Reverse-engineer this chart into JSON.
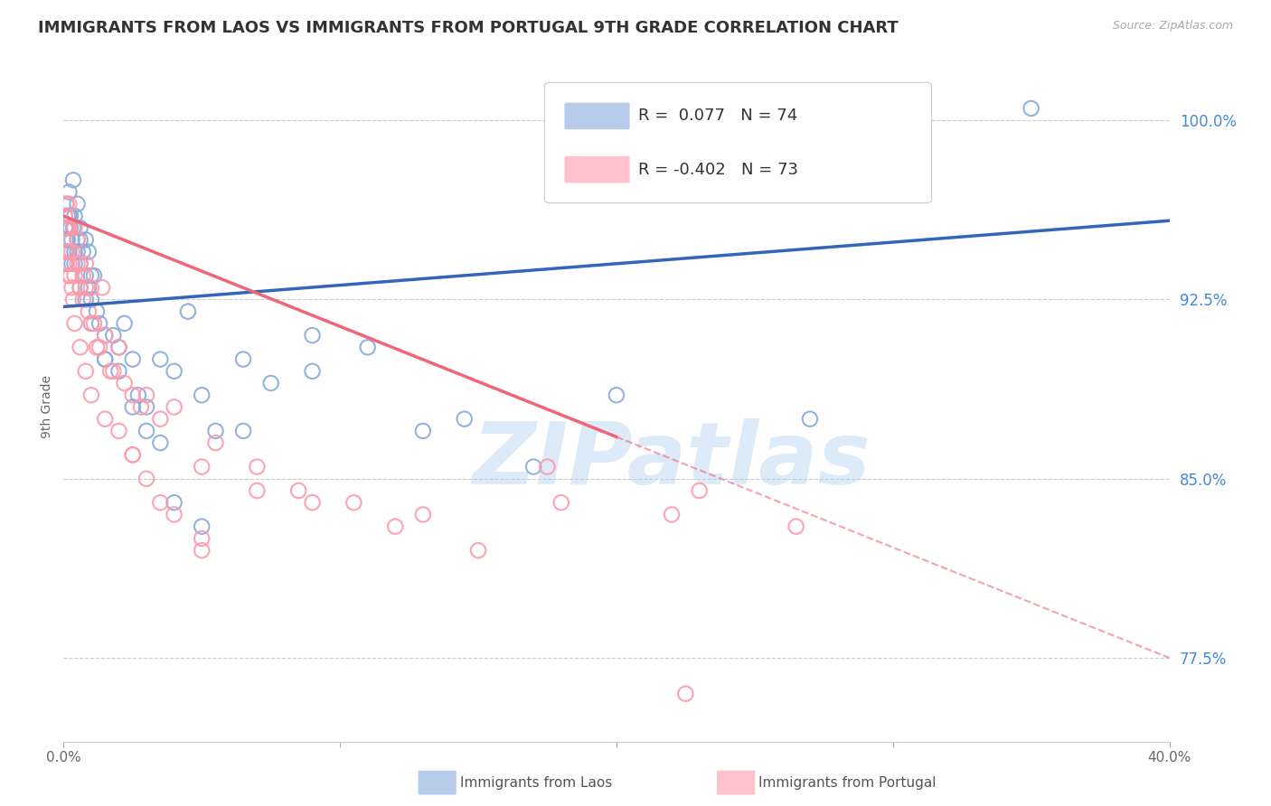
{
  "title": "IMMIGRANTS FROM LAOS VS IMMIGRANTS FROM PORTUGAL 9TH GRADE CORRELATION CHART",
  "source": "Source: ZipAtlas.com",
  "ylabel": "9th Grade",
  "y_ticks": [
    77.5,
    85.0,
    92.5,
    100.0
  ],
  "y_tick_labels": [
    "77.5%",
    "85.0%",
    "92.5%",
    "100.0%"
  ],
  "xmin": 0.0,
  "xmax": 40.0,
  "ymin": 74.0,
  "ymax": 102.0,
  "blue_R": 0.077,
  "blue_N": 74,
  "pink_R": -0.402,
  "pink_N": 73,
  "blue_color": "#88AADD",
  "pink_color": "#FF99AA",
  "blue_line_color": "#3366BB",
  "pink_line_color": "#EE6677",
  "watermark_color": "#AACCEE",
  "legend_blue_label": "Immigrants from Laos",
  "legend_pink_label": "Immigrants from Portugal",
  "blue_scatter_x": [
    0.05,
    0.05,
    0.05,
    0.1,
    0.1,
    0.1,
    0.1,
    0.15,
    0.15,
    0.2,
    0.2,
    0.25,
    0.25,
    0.3,
    0.3,
    0.35,
    0.35,
    0.4,
    0.4,
    0.5,
    0.5,
    0.5,
    0.6,
    0.6,
    0.6,
    0.7,
    0.8,
    0.8,
    0.9,
    0.9,
    1.0,
    1.0,
    1.1,
    1.2,
    1.3,
    1.5,
    1.5,
    1.8,
    2.0,
    2.2,
    2.5,
    2.7,
    3.0,
    3.5,
    4.0,
    4.5,
    5.0,
    5.5,
    6.5,
    7.5,
    9.0,
    11.0,
    13.0,
    14.5,
    17.0,
    20.0,
    27.0,
    35.0,
    0.05,
    0.1,
    0.2,
    0.4,
    0.6,
    0.8,
    1.0,
    1.5,
    2.0,
    2.5,
    3.0,
    3.5,
    4.0,
    5.0,
    6.5,
    9.0
  ],
  "blue_scatter_y": [
    95.5,
    96.0,
    94.5,
    95.0,
    96.5,
    94.5,
    95.5,
    96.0,
    95.0,
    97.0,
    94.5,
    96.0,
    95.5,
    95.0,
    94.0,
    97.5,
    95.5,
    94.5,
    96.0,
    95.0,
    94.5,
    96.5,
    95.0,
    94.0,
    95.5,
    94.5,
    93.5,
    95.0,
    94.5,
    93.0,
    93.5,
    92.5,
    93.5,
    92.0,
    91.5,
    91.0,
    90.0,
    91.0,
    90.5,
    91.5,
    90.0,
    88.5,
    88.0,
    90.0,
    89.5,
    92.0,
    88.5,
    87.0,
    90.0,
    89.0,
    91.0,
    90.5,
    87.0,
    87.5,
    85.5,
    88.5,
    87.5,
    100.5,
    94.0,
    95.5,
    96.0,
    94.0,
    93.0,
    92.5,
    91.5,
    90.0,
    89.5,
    88.0,
    87.0,
    86.5,
    84.0,
    83.0,
    87.0,
    89.5
  ],
  "pink_scatter_x": [
    0.05,
    0.05,
    0.05,
    0.1,
    0.1,
    0.1,
    0.15,
    0.15,
    0.2,
    0.2,
    0.2,
    0.25,
    0.3,
    0.3,
    0.35,
    0.4,
    0.4,
    0.5,
    0.5,
    0.6,
    0.6,
    0.7,
    0.7,
    0.8,
    0.8,
    0.9,
    1.0,
    1.0,
    1.1,
    1.2,
    1.3,
    1.4,
    1.5,
    1.7,
    1.8,
    2.0,
    2.2,
    2.5,
    2.8,
    3.0,
    3.5,
    4.0,
    5.0,
    5.5,
    7.0,
    8.5,
    10.5,
    13.0,
    17.5,
    23.0,
    0.1,
    0.2,
    0.4,
    0.6,
    0.8,
    1.0,
    1.5,
    2.0,
    2.5,
    3.0,
    4.0,
    5.0,
    7.0,
    9.0,
    12.0,
    15.0,
    18.0,
    22.0,
    26.5,
    2.5,
    3.5,
    5.0,
    22.5
  ],
  "pink_scatter_y": [
    96.0,
    95.5,
    94.5,
    96.5,
    95.5,
    94.0,
    95.5,
    94.5,
    96.5,
    95.5,
    94.0,
    93.5,
    94.5,
    93.0,
    92.5,
    95.5,
    93.5,
    94.0,
    95.0,
    94.0,
    93.0,
    93.5,
    92.5,
    94.0,
    93.0,
    92.0,
    93.0,
    91.5,
    91.5,
    90.5,
    90.5,
    93.0,
    91.0,
    89.5,
    89.5,
    90.5,
    89.0,
    88.5,
    88.0,
    88.5,
    87.5,
    88.0,
    85.5,
    86.5,
    85.5,
    84.5,
    84.0,
    83.5,
    85.5,
    84.5,
    94.0,
    93.5,
    91.5,
    90.5,
    89.5,
    88.5,
    87.5,
    87.0,
    86.0,
    85.0,
    83.5,
    82.5,
    84.5,
    84.0,
    83.0,
    82.0,
    84.0,
    83.5,
    83.0,
    86.0,
    84.0,
    82.0,
    76.0
  ],
  "blue_line_x0": 0.0,
  "blue_line_x1": 40.0,
  "blue_line_y0": 92.2,
  "blue_line_y1": 95.8,
  "pink_line_x0": 0.0,
  "pink_line_x1": 40.0,
  "pink_line_y0": 96.0,
  "pink_line_y1": 77.5,
  "pink_solid_end_x": 20.0,
  "background_color": "#FFFFFF",
  "grid_color": "#CCCCCC",
  "right_axis_color": "#4488DD",
  "title_fontsize": 13,
  "axis_label_fontsize": 10,
  "tick_fontsize": 11,
  "legend_fontsize": 13
}
